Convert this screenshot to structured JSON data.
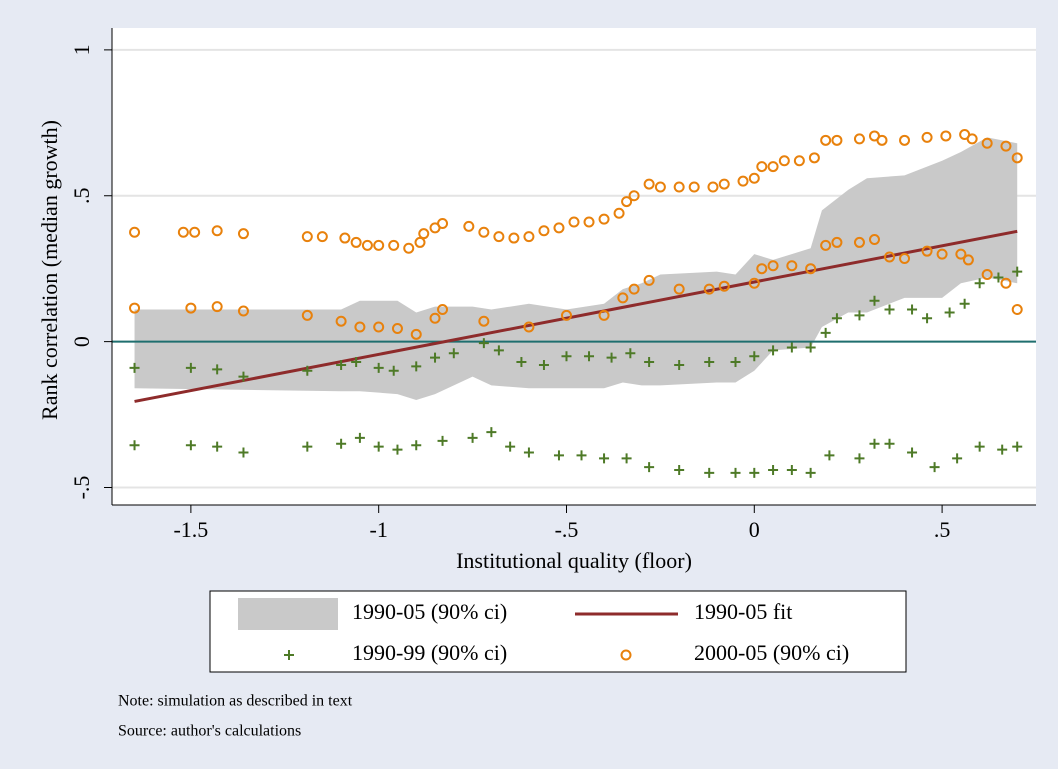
{
  "chart_data": {
    "type": "combo",
    "xlabel": "Institutional quality (floor)",
    "ylabel": "Rank correlation (median growth)",
    "note": "Note: simulation as described in text",
    "source": "Source: author's calculations",
    "xlim": [
      -1.71,
      0.75
    ],
    "ylim": [
      -0.56,
      1.075
    ],
    "xticks": [
      {
        "value": -1.5,
        "label": "-1.5"
      },
      -1,
      {
        "value": -0.5,
        "label": "-.5"
      },
      0,
      {
        "value": 0.5,
        "label": ".5"
      }
    ],
    "yticks": [
      {
        "value": -0.5,
        "label": "-.5"
      },
      0,
      {
        "value": 0.5,
        "label": ".5"
      },
      1
    ],
    "grid": true,
    "yline": 0,
    "yline_color": "#1f6f6f",
    "legend": "bottom",
    "series": [
      {
        "name": "1990-05 (90% ci)",
        "kind": "band",
        "color": "#c9c9c9",
        "x": [
          -1.65,
          -1.1,
          -1.05,
          -0.95,
          -0.9,
          -0.85,
          -0.8,
          -0.75,
          -0.7,
          -0.6,
          -0.5,
          -0.4,
          -0.35,
          -0.3,
          -0.25,
          -0.1,
          -0.05,
          0.0,
          0.05,
          0.15,
          0.18,
          0.25,
          0.3,
          0.4,
          0.5,
          0.55,
          0.62,
          0.7
        ],
        "low": [
          -0.16,
          -0.17,
          -0.17,
          -0.18,
          -0.2,
          -0.18,
          -0.15,
          -0.12,
          -0.15,
          -0.16,
          -0.16,
          -0.16,
          -0.14,
          -0.15,
          -0.15,
          -0.14,
          -0.14,
          -0.1,
          -0.03,
          -0.02,
          0.05,
          0.1,
          0.1,
          0.15,
          0.15,
          0.2,
          0.22,
          0.2
        ],
        "high": [
          0.11,
          0.11,
          0.14,
          0.14,
          0.1,
          0.12,
          0.12,
          0.12,
          0.11,
          0.13,
          0.11,
          0.13,
          0.18,
          0.2,
          0.23,
          0.24,
          0.23,
          0.3,
          0.28,
          0.32,
          0.45,
          0.52,
          0.56,
          0.57,
          0.62,
          0.65,
          0.7,
          0.68
        ]
      },
      {
        "name": "1990-05 fit",
        "kind": "line",
        "color": "#8e2b2b",
        "x": [
          -1.65,
          0.7
        ],
        "values": [
          -0.205,
          0.378
        ]
      },
      {
        "name": "1990-99 (90% ci)",
        "kind": "plus",
        "color": "#4e7a27",
        "x": [
          -1.65,
          -1.5,
          -1.43,
          -1.36,
          -1.19,
          -1.1,
          -1.06,
          -1.0,
          -0.96,
          -0.9,
          -0.85,
          -0.8,
          -0.72,
          -0.68,
          -0.62,
          -0.56,
          -0.5,
          -0.44,
          -0.38,
          -0.33,
          -0.28,
          -0.2,
          -0.12,
          -0.05,
          0.0,
          0.05,
          0.1,
          0.15,
          0.19,
          0.22,
          0.28,
          0.32,
          0.36,
          0.42,
          0.46,
          0.52,
          0.56,
          0.6,
          0.65,
          0.7,
          -1.65,
          -1.5,
          -1.43,
          -1.36,
          -1.19,
          -1.1,
          -1.05,
          -1.0,
          -0.95,
          -0.9,
          -0.83,
          -0.75,
          -0.7,
          -0.65,
          -0.6,
          -0.52,
          -0.46,
          -0.4,
          -0.34,
          -0.28,
          -0.2,
          -0.12,
          -0.05,
          0.0,
          0.05,
          0.1,
          0.15,
          0.2,
          0.28,
          0.32,
          0.36,
          0.42,
          0.48,
          0.54,
          0.6,
          0.66,
          0.7
        ],
        "values": [
          -0.09,
          -0.09,
          -0.095,
          -0.12,
          -0.1,
          -0.08,
          -0.07,
          -0.09,
          -0.1,
          -0.085,
          -0.055,
          -0.04,
          -0.005,
          -0.03,
          -0.07,
          -0.08,
          -0.05,
          -0.05,
          -0.055,
          -0.04,
          -0.07,
          -0.08,
          -0.07,
          -0.07,
          -0.05,
          -0.03,
          -0.02,
          -0.02,
          0.03,
          0.08,
          0.09,
          0.14,
          0.11,
          0.11,
          0.08,
          0.1,
          0.13,
          0.2,
          0.22,
          0.24,
          -0.355,
          -0.355,
          -0.36,
          -0.38,
          -0.36,
          -0.35,
          -0.33,
          -0.36,
          -0.37,
          -0.355,
          -0.34,
          -0.33,
          -0.31,
          -0.36,
          -0.38,
          -0.39,
          -0.39,
          -0.4,
          -0.4,
          -0.43,
          -0.44,
          -0.45,
          -0.45,
          -0.45,
          -0.44,
          -0.44,
          -0.45,
          -0.39,
          -0.4,
          -0.35,
          -0.35,
          -0.38,
          -0.43,
          -0.4,
          -0.36,
          -0.37,
          -0.36
        ]
      },
      {
        "name": "2000-05 (90% ci)",
        "kind": "circle",
        "color": "#e8810c",
        "x": [
          -1.65,
          -1.52,
          -1.49,
          -1.43,
          -1.36,
          -1.19,
          -1.15,
          -1.09,
          -1.06,
          -1.03,
          -1.0,
          -0.96,
          -0.92,
          -0.89,
          -0.88,
          -0.85,
          -0.83,
          -0.76,
          -0.72,
          -0.68,
          -0.64,
          -0.6,
          -0.56,
          -0.52,
          -0.48,
          -0.44,
          -0.4,
          -0.36,
          -0.34,
          -0.32,
          -0.28,
          -0.25,
          -0.2,
          -0.16,
          -0.11,
          -0.08,
          -0.03,
          0.0,
          0.02,
          0.05,
          0.08,
          0.12,
          0.16,
          0.19,
          0.22,
          0.28,
          0.32,
          0.34,
          0.4,
          0.46,
          0.51,
          0.56,
          0.58,
          0.62,
          0.67,
          0.7,
          -1.65,
          -1.5,
          -1.43,
          -1.36,
          -1.19,
          -1.1,
          -1.05,
          -1.0,
          -0.95,
          -0.9,
          -0.85,
          -0.83,
          -0.72,
          -0.6,
          -0.5,
          -0.4,
          -0.35,
          -0.32,
          -0.28,
          -0.2,
          -0.12,
          -0.08,
          0.0,
          0.02,
          0.05,
          0.1,
          0.15,
          0.19,
          0.22,
          0.28,
          0.32,
          0.36,
          0.4,
          0.46,
          0.5,
          0.55,
          0.57,
          0.62,
          0.67,
          0.7
        ],
        "values": [
          0.375,
          0.375,
          0.375,
          0.38,
          0.37,
          0.36,
          0.36,
          0.355,
          0.34,
          0.33,
          0.33,
          0.33,
          0.32,
          0.34,
          0.37,
          0.39,
          0.405,
          0.395,
          0.375,
          0.36,
          0.355,
          0.36,
          0.38,
          0.39,
          0.41,
          0.41,
          0.42,
          0.44,
          0.48,
          0.5,
          0.54,
          0.53,
          0.53,
          0.53,
          0.53,
          0.54,
          0.55,
          0.56,
          0.6,
          0.6,
          0.62,
          0.62,
          0.63,
          0.69,
          0.69,
          0.695,
          0.705,
          0.69,
          0.69,
          0.7,
          0.705,
          0.71,
          0.695,
          0.68,
          0.67,
          0.63,
          0.115,
          0.115,
          0.12,
          0.105,
          0.09,
          0.07,
          0.05,
          0.05,
          0.045,
          0.025,
          0.08,
          0.11,
          0.07,
          0.05,
          0.09,
          0.09,
          0.15,
          0.18,
          0.21,
          0.18,
          0.18,
          0.19,
          0.2,
          0.25,
          0.26,
          0.26,
          0.25,
          0.33,
          0.34,
          0.34,
          0.35,
          0.29,
          0.285,
          0.31,
          0.3,
          0.3,
          0.28,
          0.23,
          0.2,
          0.11
        ]
      }
    ]
  }
}
